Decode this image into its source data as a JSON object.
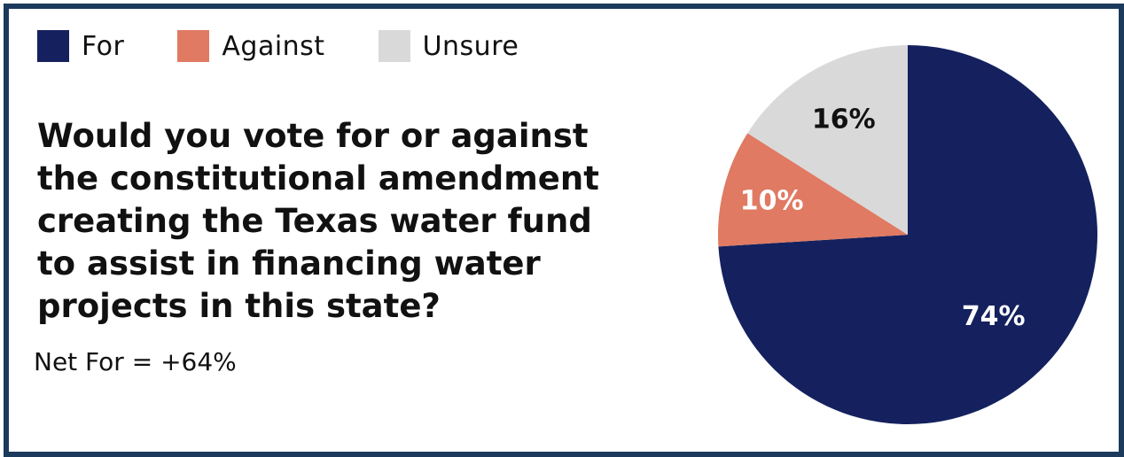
{
  "colors": {
    "frame": "#1b3a5c",
    "for": "#14215e",
    "against": "#e07a63",
    "unsure": "#d9d9d9"
  },
  "question": "Would you vote for or against the constitutional amendment creating the Texas water fund to assist in financing water projects in this state?",
  "net_text": "Net For = +64%",
  "chart_data": {
    "type": "pie",
    "slices": [
      {
        "name": "For",
        "value": 74,
        "label": "74%",
        "color": "#14215e",
        "label_color": "#ffffff"
      },
      {
        "name": "Against",
        "value": 10,
        "label": "10%",
        "color": "#e07a63",
        "label_color": "#ffffff"
      },
      {
        "name": "Unsure",
        "value": 16,
        "label": "16%",
        "color": "#d9d9d9",
        "label_color": "#111111"
      }
    ],
    "start": "12 o'clock",
    "direction": "clockwise",
    "legend_position": "top-left"
  }
}
